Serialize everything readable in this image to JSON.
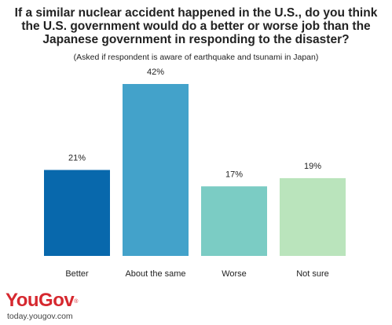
{
  "title_lines": [
    "If a similar nuclear accident happened in the U.S., do you think",
    "the U.S. government would do a better or worse job than the",
    "Japanese government in responding to the disaster?"
  ],
  "subtitle": "(Asked if respondent is aware of earthquake and tsunami in Japan)",
  "logo": {
    "text": "YouGov",
    "mark": "®",
    "url": "today.yougov.com",
    "color": "#d6282f"
  },
  "chart_data": {
    "type": "bar",
    "categories": [
      "Better",
      "About the same",
      "Worse",
      "Not sure"
    ],
    "values": [
      21,
      42,
      17,
      19
    ],
    "value_labels": [
      "21%",
      "42%",
      "17%",
      "19%"
    ],
    "colors": [
      "#0868ac",
      "#43a2ca",
      "#7bccc4",
      "#bae4bc"
    ],
    "title": "If a similar nuclear accident happened in the U.S., do you think the U.S. government would do a better or worse job than the Japanese government in responding to the disaster?",
    "subtitle": "(Asked if respondent is aware of earthquake and tsunami in Japan)",
    "xlabel": "",
    "ylabel": "",
    "ylim": [
      0,
      42
    ],
    "grid": false
  }
}
